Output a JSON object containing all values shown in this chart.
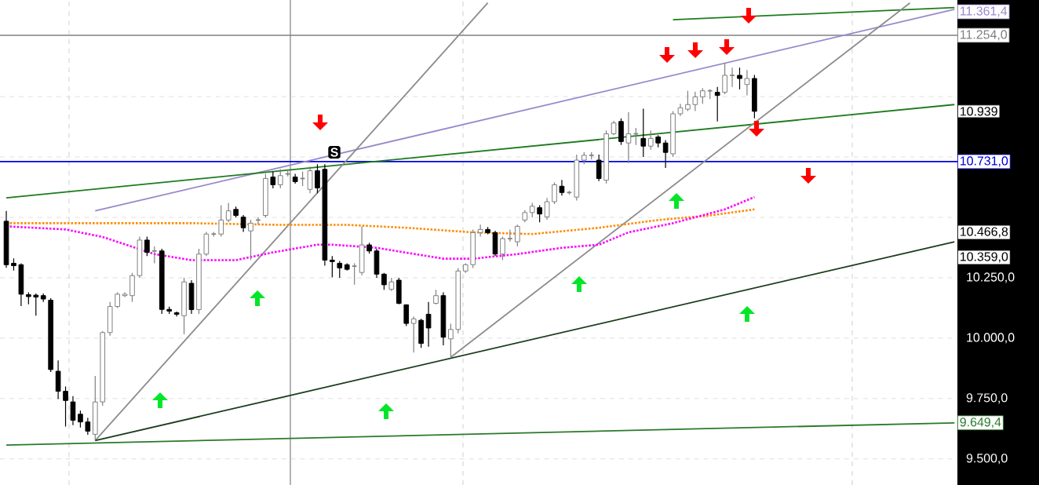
{
  "chart_data": {
    "type": "candlestick",
    "categories": [
      null,
      null,
      null,
      null,
      null,
      null,
      null,
      null,
      null,
      null,
      null,
      null,
      null,
      null,
      null,
      null,
      null,
      null,
      null,
      null,
      null,
      null,
      null,
      null,
      null,
      null,
      null,
      null,
      null,
      null,
      null,
      null,
      null,
      null,
      null,
      null,
      null,
      null,
      null,
      null,
      null,
      null,
      null,
      null,
      null,
      null,
      null,
      null,
      null,
      null,
      null,
      null,
      null,
      null,
      null,
      null,
      null,
      null,
      null,
      null,
      null,
      null,
      null,
      null,
      null,
      null,
      null,
      null,
      null,
      null,
      null,
      null,
      null,
      null,
      null,
      null,
      null,
      null,
      null,
      null,
      null,
      null,
      null,
      null,
      null,
      null,
      null,
      null,
      null,
      null,
      null,
      null,
      null,
      null,
      null,
      null,
      null,
      null,
      null,
      null,
      null,
      null,
      null,
      null,
      null,
      null,
      null,
      null,
      null,
      null,
      null,
      null,
      null,
      null,
      null,
      null,
      null,
      null,
      null,
      null,
      null,
      null,
      null,
      null,
      null,
      null,
      null,
      null,
      null
    ],
    "ohlc": [
      [
        10484,
        10527,
        10291,
        10304
      ],
      [
        10310,
        10330,
        10280,
        10300
      ],
      [
        10304,
        10310,
        10133,
        10182
      ],
      [
        10180,
        10190,
        10140,
        10172
      ],
      [
        10178,
        10185,
        10093,
        10170
      ],
      [
        10176,
        10185,
        10150,
        10162
      ],
      [
        10157,
        10165,
        9860,
        9870
      ],
      [
        9863,
        9908,
        9748,
        9780
      ],
      [
        9780,
        9800,
        9634,
        9742
      ],
      [
        9736,
        9760,
        9640,
        9660
      ],
      [
        9685,
        9700,
        9630,
        9653
      ],
      [
        9653,
        9670,
        9600,
        9615
      ],
      [
        9602,
        9844,
        9576,
        9736
      ],
      [
        9736,
        10030,
        9720,
        10023
      ],
      [
        10023,
        10150,
        10010,
        10131
      ],
      [
        10131,
        10190,
        10125,
        10182
      ],
      [
        10176,
        10190,
        10170,
        10182
      ],
      [
        10176,
        10270,
        10150,
        10259
      ],
      [
        10259,
        10420,
        10250,
        10406
      ],
      [
        10406,
        10420,
        10340,
        10355
      ],
      [
        10361,
        10380,
        10310,
        10361
      ],
      [
        10361,
        10370,
        10100,
        10119
      ],
      [
        10119,
        10130,
        10100,
        10112
      ],
      [
        10105,
        10110,
        10090,
        10099
      ],
      [
        10093,
        10250,
        10016,
        10233
      ],
      [
        10227,
        10240,
        10100,
        10118
      ],
      [
        10118,
        10370,
        10100,
        10348
      ],
      [
        10348,
        10440,
        10340,
        10431
      ],
      [
        10431,
        10440,
        10420,
        10431
      ],
      [
        10431,
        10550,
        10420,
        10489
      ],
      [
        10489,
        10560,
        10480,
        10527
      ],
      [
        10533,
        10545,
        10500,
        10508
      ],
      [
        10501,
        10510,
        10440,
        10457
      ],
      [
        10444,
        10490,
        10323,
        10476
      ],
      [
        10489,
        10500,
        10470,
        10489
      ],
      [
        10508,
        10680,
        10500,
        10661
      ],
      [
        10667,
        10690,
        10620,
        10635
      ],
      [
        10635,
        10700,
        10620,
        10673
      ],
      [
        10680,
        10700,
        10670,
        10680
      ],
      [
        10667,
        10680,
        10640,
        10648
      ],
      [
        10661,
        10690,
        10630,
        10661
      ],
      [
        10616,
        10710,
        10600,
        10693
      ],
      [
        10693,
        10720,
        10600,
        10622
      ],
      [
        10699,
        10720,
        10300,
        10323
      ],
      [
        10323,
        10340,
        10252,
        10317
      ],
      [
        10310,
        10320,
        10250,
        10291
      ],
      [
        10304,
        10310,
        10280,
        10285
      ],
      [
        10298,
        10310,
        10221,
        10298
      ],
      [
        10272,
        10463,
        10260,
        10386
      ],
      [
        10386,
        10395,
        10350,
        10361
      ],
      [
        10361,
        10370,
        10250,
        10265
      ],
      [
        10265,
        10270,
        10200,
        10221
      ],
      [
        10202,
        10250,
        10195,
        10233
      ],
      [
        10240,
        10250,
        10140,
        10144
      ],
      [
        10138,
        10140,
        10050,
        10061
      ],
      [
        10061,
        10090,
        9940,
        10080
      ],
      [
        10074,
        10080,
        9960,
        9978
      ],
      [
        10099,
        10150,
        9965,
        10042
      ],
      [
        10144,
        10200,
        10140,
        10176
      ],
      [
        10176,
        10190,
        9970,
        10004
      ],
      [
        9997,
        10060,
        9921,
        10036
      ],
      [
        10036,
        10290,
        10020,
        10278
      ],
      [
        10278,
        10310,
        10270,
        10304
      ],
      [
        10304,
        10450,
        10290,
        10437
      ],
      [
        10437,
        10470,
        10420,
        10450
      ],
      [
        10450,
        10460,
        10430,
        10437
      ],
      [
        10437,
        10445,
        10340,
        10348
      ],
      [
        10348,
        10420,
        10323,
        10412
      ],
      [
        10412,
        10450,
        10400,
        10412
      ],
      [
        10399,
        10470,
        10380,
        10463
      ],
      [
        10489,
        10530,
        10480,
        10520
      ],
      [
        10520,
        10560,
        10500,
        10546
      ],
      [
        10540,
        10550,
        10480,
        10514
      ],
      [
        10502,
        10580,
        10490,
        10565
      ],
      [
        10565,
        10645,
        10555,
        10635
      ],
      [
        10629,
        10655,
        10590,
        10603
      ],
      [
        10603,
        10610,
        10595,
        10603
      ],
      [
        10584,
        10760,
        10570,
        10737
      ],
      [
        10737,
        10770,
        10720,
        10757
      ],
      [
        10757,
        10770,
        10740,
        10757
      ],
      [
        10737,
        10760,
        10650,
        10661
      ],
      [
        10654,
        10860,
        10640,
        10846
      ],
      [
        10846,
        10900,
        10840,
        10891
      ],
      [
        10897,
        10910,
        10800,
        10814
      ],
      [
        10808,
        10935,
        10725,
        10846
      ],
      [
        10846,
        10870,
        10800,
        10846
      ],
      [
        10827,
        10950,
        10750,
        10795
      ],
      [
        10795,
        10860,
        10780,
        10827
      ],
      [
        10833,
        10840,
        10790,
        10808
      ],
      [
        10808,
        10820,
        10705,
        10769
      ],
      [
        10763,
        10940,
        10750,
        10929
      ],
      [
        10929,
        10970,
        10920,
        10954
      ],
      [
        10948,
        11024,
        10940,
        10967
      ],
      [
        10967,
        11020,
        10940,
        10999
      ],
      [
        10999,
        11035,
        10970,
        11024
      ],
      [
        11024,
        11030,
        10990,
        11024
      ],
      [
        11018,
        11040,
        10897,
        11005
      ],
      [
        11018,
        11139,
        11010,
        11088
      ],
      [
        11088,
        11120,
        11040,
        11088
      ],
      [
        11088,
        11120,
        11030,
        11075
      ],
      [
        11050,
        11110,
        11005,
        11075
      ],
      [
        11075,
        11090,
        10910,
        10939
      ],
      null,
      null,
      null,
      null,
      null,
      null,
      null,
      null,
      null,
      null,
      null,
      null,
      null,
      null,
      null,
      null,
      null,
      null,
      null,
      null,
      null,
      null,
      null,
      null,
      null,
      null,
      null
    ],
    "series": [
      {
        "type": "line",
        "color": "#1e7b1e",
        "line_style": "solid",
        "values": [
          null,
          null,
          null,
          null,
          null,
          null,
          null,
          null,
          null,
          null,
          null,
          null,
          null,
          null,
          null,
          null,
          null,
          null,
          null,
          null,
          null,
          null,
          null,
          null,
          null,
          null,
          null,
          null,
          null,
          null,
          null,
          null,
          null,
          null,
          null,
          null,
          null,
          null,
          null,
          null,
          null,
          null,
          null,
          null,
          null,
          null,
          null,
          null,
          null,
          null,
          null,
          null,
          null,
          null,
          null,
          null,
          null,
          null,
          null,
          null,
          null,
          null,
          null,
          null,
          null,
          null,
          null,
          null,
          null,
          null,
          null,
          null,
          null,
          null,
          null,
          null,
          null,
          null,
          null,
          null,
          null,
          null,
          null,
          null,
          null,
          null,
          null,
          null,
          null,
          null,
          11318,
          null,
          null,
          null,
          null,
          null,
          null,
          null,
          null,
          null,
          null,
          null,
          null,
          null,
          null,
          null,
          null,
          null,
          null,
          null,
          null,
          null,
          null,
          null,
          null,
          null,
          null,
          null,
          null,
          null,
          null,
          null,
          null,
          null,
          null,
          null,
          null,
          null,
          11369
        ]
      },
      {
        "type": "line",
        "color": "#9a88cc",
        "line_style": "solid",
        "values": [
          null,
          null,
          null,
          null,
          null,
          null,
          null,
          null,
          null,
          null,
          null,
          null,
          10527,
          null,
          null,
          null,
          null,
          null,
          null,
          null,
          null,
          null,
          null,
          null,
          null,
          null,
          null,
          null,
          null,
          null,
          null,
          null,
          null,
          null,
          null,
          null,
          null,
          null,
          null,
          null,
          null,
          null,
          null,
          null,
          null,
          null,
          null,
          null,
          null,
          null,
          null,
          null,
          null,
          null,
          null,
          null,
          null,
          null,
          null,
          null,
          null,
          null,
          null,
          null,
          null,
          null,
          null,
          null,
          null,
          null,
          null,
          null,
          null,
          null,
          null,
          null,
          null,
          null,
          null,
          null,
          null,
          null,
          null,
          null,
          null,
          null,
          null,
          null,
          null,
          null,
          null,
          null,
          null,
          null,
          null,
          null,
          null,
          null,
          null,
          null,
          null,
          null,
          null,
          null,
          null,
          null,
          null,
          null,
          null,
          null,
          null,
          null,
          null,
          null,
          null,
          null,
          null,
          null,
          null,
          null,
          null,
          null,
          null,
          null,
          null,
          null,
          null,
          null,
          11361.4
        ],
        "value_labels": [
          null,
          null,
          null,
          null,
          null,
          null,
          null,
          null,
          null,
          null,
          null,
          null,
          null,
          null,
          null,
          null,
          null,
          null,
          null,
          null,
          null,
          null,
          null,
          null,
          null,
          null,
          null,
          null,
          null,
          null,
          null,
          null,
          null,
          null,
          null,
          null,
          null,
          null,
          null,
          null,
          null,
          null,
          null,
          null,
          null,
          null,
          null,
          null,
          null,
          null,
          null,
          null,
          null,
          null,
          null,
          null,
          null,
          null,
          null,
          null,
          null,
          null,
          null,
          null,
          null,
          null,
          null,
          null,
          null,
          null,
          null,
          null,
          null,
          null,
          null,
          null,
          null,
          null,
          null,
          null,
          null,
          null,
          null,
          null,
          null,
          null,
          null,
          null,
          null,
          null,
          null,
          null,
          null,
          null,
          null,
          null,
          null,
          null,
          null,
          null,
          null,
          null,
          null,
          null,
          null,
          null,
          null,
          null,
          null,
          null,
          null,
          null,
          null,
          null,
          null,
          null,
          null,
          null,
          null,
          null,
          null,
          null,
          null,
          null,
          null,
          null,
          null,
          null,
          "11.361,4"
        ]
      },
      {
        "type": "line",
        "color": "#1e7b1e",
        "line_style": "solid",
        "values": [
          10581,
          null,
          null,
          null,
          null,
          null,
          null,
          null,
          null,
          null,
          null,
          null,
          null,
          null,
          null,
          null,
          null,
          null,
          null,
          null,
          null,
          null,
          null,
          null,
          null,
          null,
          null,
          null,
          null,
          null,
          null,
          null,
          null,
          null,
          null,
          null,
          null,
          null,
          null,
          null,
          null,
          null,
          null,
          null,
          null,
          null,
          null,
          null,
          null,
          null,
          null,
          null,
          null,
          null,
          null,
          null,
          null,
          null,
          null,
          null,
          null,
          null,
          null,
          null,
          null,
          null,
          null,
          null,
          null,
          null,
          null,
          null,
          null,
          null,
          null,
          null,
          null,
          null,
          null,
          null,
          null,
          null,
          null,
          null,
          null,
          null,
          null,
          null,
          null,
          null,
          null,
          null,
          null,
          null,
          null,
          null,
          null,
          null,
          null,
          null,
          null,
          null,
          null,
          null,
          null,
          null,
          null,
          null,
          null,
          null,
          null,
          null,
          null,
          null,
          null,
          null,
          null,
          null,
          null,
          null,
          null,
          null,
          null,
          null,
          null,
          null,
          null,
          null,
          10967
        ]
      },
      {
        "type": "line",
        "color": "#8c8c8c",
        "line_style": "solid",
        "values": [
          null,
          null,
          null,
          null,
          null,
          null,
          null,
          null,
          null,
          null,
          null,
          null,
          9576,
          null,
          null,
          null,
          null,
          null,
          null,
          null,
          null,
          null,
          null,
          null,
          null,
          null,
          null,
          null,
          null,
          null,
          null,
          null,
          null,
          null,
          null,
          null,
          null,
          null,
          null,
          null,
          null,
          null,
          null,
          null,
          null,
          null,
          null,
          null,
          null,
          null,
          null,
          null,
          null,
          null,
          null,
          null,
          null,
          null,
          null,
          null,
          null,
          null,
          null,
          null,
          null,
          11388,
          null,
          null,
          null,
          null,
          null,
          null,
          null,
          null,
          null,
          null,
          null,
          null,
          null,
          null,
          null,
          null,
          null,
          null,
          null,
          null,
          null,
          null,
          null,
          null,
          null,
          null,
          null,
          null,
          null,
          null,
          null,
          null,
          null,
          null,
          null,
          null,
          null,
          null,
          null,
          null,
          null,
          null,
          null,
          null,
          null,
          null,
          null,
          null,
          null,
          null,
          null,
          null,
          null,
          null,
          null,
          null,
          null,
          null,
          null,
          null,
          null,
          null,
          null
        ]
      },
      {
        "type": "line",
        "color": "#8c8c8c",
        "line_style": "solid",
        "values": [
          null,
          null,
          null,
          null,
          null,
          null,
          null,
          null,
          null,
          null,
          null,
          null,
          null,
          null,
          null,
          null,
          null,
          null,
          null,
          null,
          null,
          null,
          null,
          null,
          null,
          null,
          null,
          null,
          null,
          null,
          null,
          null,
          null,
          null,
          null,
          null,
          null,
          null,
          null,
          null,
          null,
          null,
          null,
          null,
          null,
          null,
          null,
          null,
          null,
          null,
          null,
          null,
          null,
          null,
          null,
          null,
          null,
          null,
          null,
          null,
          9921,
          null,
          null,
          null,
          null,
          null,
          null,
          null,
          null,
          null,
          null,
          null,
          null,
          null,
          null,
          null,
          null,
          null,
          null,
          null,
          null,
          null,
          null,
          null,
          null,
          null,
          null,
          null,
          null,
          null,
          null,
          null,
          null,
          null,
          null,
          null,
          null,
          null,
          null,
          null,
          null,
          null,
          null,
          null,
          null,
          null,
          null,
          null,
          null,
          null,
          null,
          null,
          null,
          null,
          null,
          null,
          null,
          null,
          null,
          null,
          null,
          null,
          11388,
          null,
          null,
          null,
          null,
          null,
          null
        ]
      },
      {
        "type": "line",
        "color": "#1b3b1b",
        "line_style": "solid",
        "values": [
          null,
          null,
          null,
          null,
          null,
          null,
          null,
          null,
          null,
          null,
          null,
          null,
          9576,
          null,
          null,
          null,
          null,
          null,
          null,
          null,
          null,
          null,
          null,
          null,
          null,
          null,
          null,
          null,
          null,
          null,
          null,
          null,
          null,
          null,
          null,
          null,
          null,
          null,
          null,
          null,
          null,
          null,
          null,
          null,
          null,
          null,
          null,
          null,
          null,
          null,
          null,
          null,
          null,
          null,
          null,
          null,
          null,
          null,
          null,
          null,
          null,
          null,
          null,
          null,
          null,
          null,
          null,
          null,
          null,
          null,
          null,
          null,
          null,
          null,
          null,
          null,
          null,
          null,
          null,
          null,
          null,
          null,
          null,
          null,
          null,
          null,
          null,
          null,
          null,
          null,
          null,
          null,
          null,
          null,
          null,
          null,
          null,
          null,
          null,
          null,
          null,
          null,
          null,
          null,
          null,
          null,
          null,
          null,
          null,
          null,
          null,
          null,
          null,
          null,
          null,
          null,
          null,
          null,
          null,
          null,
          null,
          null,
          null,
          null,
          null,
          null,
          null,
          null,
          10399
        ]
      },
      {
        "type": "line",
        "color": "#2a7a2a",
        "line_style": "solid",
        "values": [
          9557,
          null,
          null,
          null,
          null,
          null,
          null,
          null,
          null,
          null,
          null,
          null,
          null,
          null,
          null,
          null,
          null,
          null,
          null,
          null,
          null,
          null,
          null,
          null,
          null,
          null,
          null,
          null,
          null,
          null,
          null,
          null,
          null,
          null,
          null,
          null,
          null,
          null,
          null,
          null,
          null,
          null,
          null,
          null,
          null,
          null,
          null,
          null,
          null,
          null,
          null,
          null,
          null,
          null,
          null,
          null,
          null,
          null,
          null,
          null,
          null,
          null,
          null,
          null,
          null,
          null,
          null,
          null,
          null,
          null,
          null,
          null,
          null,
          null,
          null,
          null,
          null,
          null,
          null,
          null,
          null,
          null,
          null,
          null,
          null,
          null,
          null,
          null,
          null,
          null,
          null,
          null,
          null,
          null,
          null,
          null,
          null,
          null,
          null,
          null,
          null,
          null,
          null,
          null,
          null,
          null,
          null,
          null,
          null,
          null,
          null,
          null,
          null,
          null,
          null,
          null,
          null,
          null,
          null,
          null,
          null,
          null,
          null,
          null,
          null,
          null,
          null,
          null,
          9649.4
        ],
        "value_labels": [
          null,
          null,
          null,
          null,
          null,
          null,
          null,
          null,
          null,
          null,
          null,
          null,
          null,
          null,
          null,
          null,
          null,
          null,
          null,
          null,
          null,
          null,
          null,
          null,
          null,
          null,
          null,
          null,
          null,
          null,
          null,
          null,
          null,
          null,
          null,
          null,
          null,
          null,
          null,
          null,
          null,
          null,
          null,
          null,
          null,
          null,
          null,
          null,
          null,
          null,
          null,
          null,
          null,
          null,
          null,
          null,
          null,
          null,
          null,
          null,
          null,
          null,
          null,
          null,
          null,
          null,
          null,
          null,
          null,
          null,
          null,
          null,
          null,
          null,
          null,
          null,
          null,
          null,
          null,
          null,
          null,
          null,
          null,
          null,
          null,
          null,
          null,
          null,
          null,
          null,
          null,
          null,
          null,
          null,
          null,
          null,
          null,
          null,
          null,
          null,
          null,
          null,
          null,
          null,
          null,
          null,
          null,
          null,
          null,
          null,
          null,
          null,
          null,
          null,
          null,
          null,
          null,
          null,
          null,
          null,
          null,
          null,
          null,
          null,
          null,
          null,
          null,
          null,
          "9.649,4"
        ]
      },
      {
        "type": "line",
        "color": "#ff8c00",
        "line_style": "dotted",
        "values": [
          10476,
          null,
          null,
          null,
          null,
          null,
          null,
          null,
          null,
          null,
          null,
          null,
          10476,
          null,
          null,
          null,
          null,
          null,
          null,
          null,
          null,
          null,
          null,
          null,
          null,
          10476,
          null,
          null,
          null,
          null,
          null,
          null,
          null,
          null,
          null,
          null,
          null,
          10469,
          null,
          null,
          null,
          null,
          null,
          null,
          null,
          null,
          10469,
          null,
          null,
          null,
          null,
          null,
          null,
          null,
          10457,
          null,
          null,
          null,
          null,
          null,
          null,
          null,
          null,
          10438,
          null,
          null,
          null,
          null,
          null,
          null,
          null,
          10431,
          null,
          null,
          null,
          null,
          null,
          null,
          null,
          null,
          10457,
          null,
          null,
          null,
          null,
          null,
          null,
          null,
          10489,
          null,
          null,
          null,
          null,
          null,
          null,
          10508,
          null,
          null,
          null,
          null,
          null,
          10533,
          null,
          null,
          null,
          null,
          null,
          null,
          null,
          null,
          null,
          null,
          null,
          null,
          null,
          null,
          null,
          null,
          null,
          null,
          null,
          null,
          null,
          null,
          null,
          null,
          null,
          null,
          null
        ]
      },
      {
        "type": "line",
        "color": "#ff00ff",
        "line_style": "dotted",
        "values": [
          10463,
          null,
          null,
          null,
          null,
          null,
          null,
          null,
          10450,
          null,
          null,
          null,
          null,
          10419,
          null,
          null,
          null,
          null,
          null,
          null,
          10348,
          null,
          null,
          null,
          null,
          10323,
          null,
          null,
          null,
          null,
          null,
          10323,
          null,
          null,
          null,
          null,
          10355,
          null,
          null,
          null,
          null,
          null,
          10387,
          null,
          10387,
          null,
          null,
          null,
          null,
          null,
          10374,
          null,
          null,
          null,
          null,
          null,
          null,
          null,
          null,
          10329,
          null,
          null,
          null,
          10329,
          null,
          null,
          null,
          null,
          null,
          10348,
          null,
          null,
          null,
          null,
          null,
          10374,
          null,
          null,
          null,
          null,
          10387,
          null,
          null,
          null,
          10438,
          null,
          null,
          null,
          null,
          null,
          10476,
          null,
          null,
          null,
          null,
          null,
          null,
          10533,
          null,
          null,
          null,
          10584,
          null,
          null,
          null,
          null,
          null,
          null,
          null,
          null,
          null,
          null,
          null,
          null,
          null,
          null,
          null,
          null,
          null,
          null,
          null,
          null,
          null,
          null,
          null,
          null,
          null,
          null,
          null
        ]
      }
    ],
    "ylim": [
      9392,
      11400
    ],
    "yticks": [
      {
        "value": 9500,
        "label": "9.500,0"
      },
      {
        "value": 9750,
        "label": "9.750,0"
      },
      {
        "value": 10000,
        "label": "10.000,0"
      },
      {
        "value": 10250,
        "label": "10.250,0"
      },
      {
        "value": 10500,
        "label": null
      },
      {
        "value": 10750,
        "label": null
      },
      {
        "value": 11000,
        "label": null
      }
    ],
    "grid": "y",
    "ref_lines": [
      {
        "axis": "y",
        "value": 11254,
        "label": "11.254,0",
        "color": "#808080"
      },
      {
        "axis": "y",
        "value": 10731,
        "label": "10.731,0",
        "color": "#0000dd"
      }
    ],
    "annotations": [
      "S",
      {
        "text": "10.939",
        "y": 10939
      },
      "10.466,8",
      "10.359,0"
    ]
  }
}
